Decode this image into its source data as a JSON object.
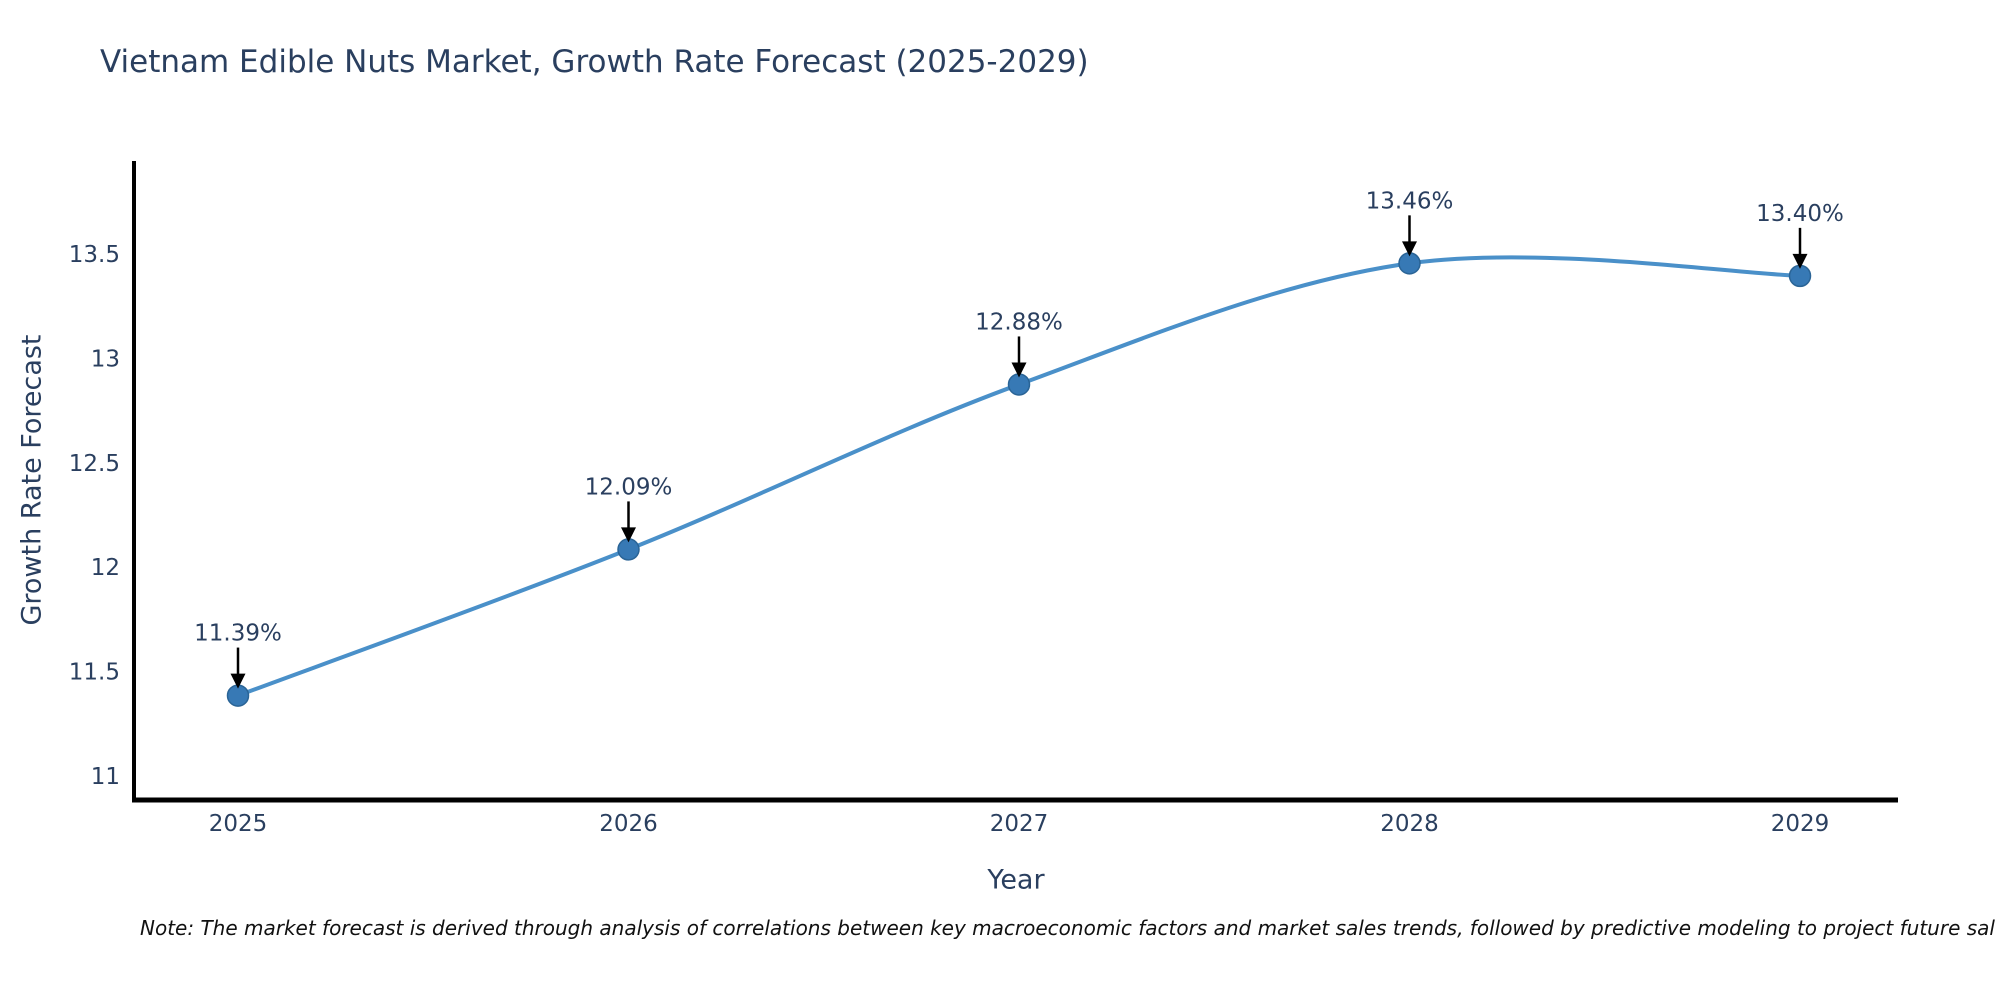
{
  "chart_data": {
    "type": "line",
    "title": "Vietnam Edible Nuts Market, Growth Rate Forecast (2025-2029)",
    "xlabel": "Year",
    "ylabel": "Growth Rate Forecast",
    "x": [
      2025,
      2026,
      2027,
      2028,
      2029
    ],
    "series": [
      {
        "name": "Growth Rate Forecast",
        "values": [
          11.39,
          12.09,
          12.88,
          13.46,
          13.4
        ]
      }
    ],
    "point_labels": [
      "11.39%",
      "12.09%",
      "12.88%",
      "13.46%",
      "13.40%"
    ],
    "xticks": [
      "2025",
      "2026",
      "2027",
      "2028",
      "2029"
    ],
    "yticks": [
      "11",
      "11.5",
      "12",
      "12.5",
      "13",
      "13.5"
    ],
    "ylim": [
      10.9,
      13.95
    ],
    "grid": false,
    "legend": false,
    "line_shape": "spline",
    "colors": {
      "line": "#4a90c9",
      "marker_fill": "#3779b5",
      "marker_stroke": "#2a6496",
      "axis": "#000000",
      "text": "#2a3f5f",
      "annotation_arrow": "#000000",
      "note_text": "#111111"
    }
  },
  "note": {
    "text": "Note: The market forecast is derived through analysis of correlations between key macroeconomic factors and market sales trends, followed by predictive modeling to project future sal"
  }
}
